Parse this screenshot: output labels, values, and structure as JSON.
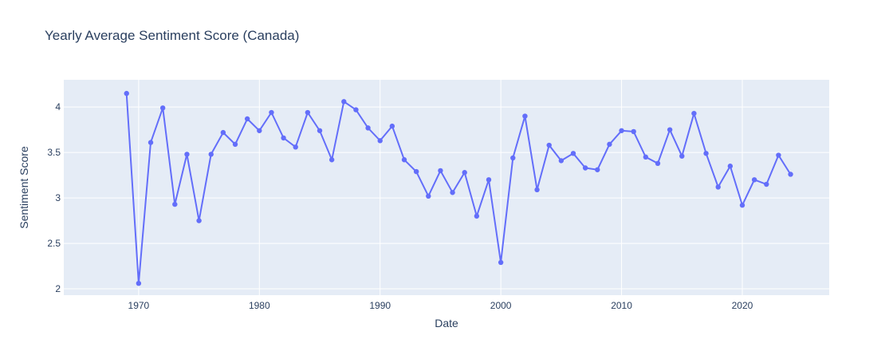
{
  "chart_data": {
    "type": "line",
    "title": "Yearly Average Sentiment Score (Canada)",
    "xlabel": "Date",
    "ylabel": "Sentiment Score",
    "xlim": [
      1963.8,
      2027.2
    ],
    "ylim": [
      1.93,
      4.3
    ],
    "x_ticks": [
      1970,
      1980,
      1990,
      2000,
      2010,
      2020
    ],
    "y_ticks": [
      2,
      2.5,
      3,
      3.5,
      4
    ],
    "grid": true,
    "legend": "none",
    "colors": {
      "series": "#636efa",
      "plot_bg": "#e5ecf6",
      "grid": "#ffffff",
      "text": "#2a3f5f"
    },
    "series": [
      {
        "x": [
          1969,
          1970,
          1971,
          1972,
          1973,
          1974,
          1975,
          1976,
          1977,
          1978,
          1979,
          1980,
          1981,
          1982,
          1983,
          1984,
          1985,
          1986,
          1987,
          1988,
          1989,
          1990,
          1991,
          1992,
          1993,
          1994,
          1995,
          1996,
          1997,
          1998,
          1999,
          2000,
          2001,
          2002,
          2003,
          2004,
          2005,
          2006,
          2007,
          2008,
          2009,
          2010,
          2011,
          2012,
          2013,
          2014,
          2015,
          2016,
          2017,
          2018,
          2019,
          2020,
          2021,
          2022,
          2023,
          2024
        ],
        "values": [
          4.15,
          2.06,
          3.61,
          3.99,
          2.93,
          3.48,
          2.75,
          3.48,
          3.72,
          3.59,
          3.87,
          3.74,
          3.94,
          3.66,
          3.56,
          3.94,
          3.74,
          3.42,
          4.06,
          3.97,
          3.77,
          3.63,
          3.79,
          3.42,
          3.29,
          3.02,
          3.3,
          3.06,
          3.28,
          2.8,
          3.2,
          2.29,
          3.44,
          3.9,
          3.09,
          3.58,
          3.41,
          3.49,
          3.33,
          3.31,
          3.59,
          3.74,
          3.73,
          3.45,
          3.38,
          3.75,
          3.46,
          3.93,
          3.49,
          3.12,
          3.35,
          2.92,
          3.2,
          3.15,
          3.47,
          3.26
        ]
      }
    ]
  }
}
